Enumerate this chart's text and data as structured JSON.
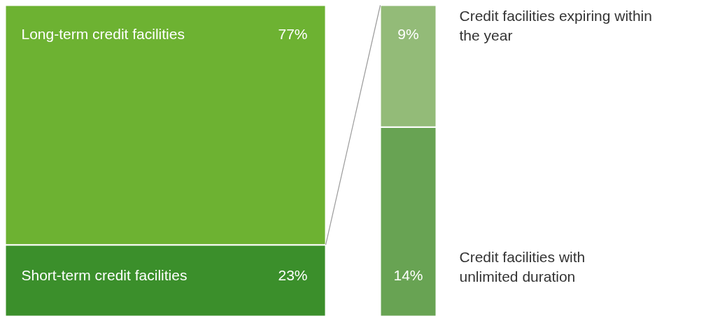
{
  "chart_data": [
    {
      "type": "bar",
      "stacked": true,
      "categories": [
        null
      ],
      "series": [
        {
          "name": "Short-term credit facilities",
          "color": "#3b8f2b",
          "values": [
            23
          ],
          "value_labels": [
            "23%"
          ]
        },
        {
          "name": "Long-term credit facilities",
          "color": "#6db232",
          "values": [
            77
          ],
          "value_labels": [
            "77%"
          ]
        }
      ]
    },
    {
      "type": "bar",
      "stacked": true,
      "categories": [
        null
      ],
      "series": [
        {
          "name": "Credit facilities with\nunlimited duration",
          "color": "#68a353",
          "values": [
            14
          ],
          "value_labels": [
            "14%"
          ]
        },
        {
          "name": "Credit facilities expiring within\nthe year",
          "color": "#93bb78",
          "values": [
            9
          ],
          "value_labels": [
            "9%"
          ]
        }
      ]
    }
  ]
}
